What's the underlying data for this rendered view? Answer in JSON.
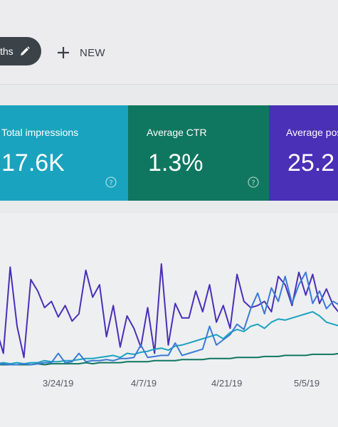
{
  "toolbar": {
    "chip_label": "ths",
    "new_label": "NEW"
  },
  "cards": [
    {
      "label": "Total impressions",
      "value": "17.6K",
      "color": "#1aa3bf"
    },
    {
      "label": "Average CTR",
      "value": "1.3%",
      "color": "#0f7760"
    },
    {
      "label": "Average pos",
      "value": "25.2",
      "color": "#4a2fb7"
    }
  ],
  "colors": {
    "impressions": "#1aa3bf",
    "ctr": "#0f7760",
    "position": "#4a2fb7",
    "clicks": "#3a7bd5"
  },
  "icons": {
    "edit": "pencil-icon",
    "add": "plus-icon",
    "help": "help-circle-icon"
  },
  "chart_data": {
    "type": "line",
    "x_tick_labels": [
      "3/24/19",
      "4/7/19",
      "4/21/19",
      "5/5/19"
    ],
    "grid": false,
    "series": [
      {
        "color": "#4a2fb7",
        "values": [
          0.35,
          0.12,
          0.95,
          0.38,
          0.08,
          0.83,
          0.72,
          0.56,
          0.62,
          0.47,
          0.58,
          0.43,
          0.5,
          0.92,
          0.66,
          0.78,
          0.28,
          0.58,
          0.18,
          0.48,
          0.36,
          0.18,
          0.56,
          0.12,
          0.98,
          0.2,
          0.6,
          0.46,
          0.46,
          0.72,
          0.52,
          0.78,
          0.42,
          0.58,
          0.36,
          0.88,
          0.62,
          0.56,
          0.58,
          0.62,
          0.52,
          0.86,
          0.78,
          0.58,
          0.9,
          0.68,
          0.88,
          0.6,
          0.74,
          0.58,
          0.5
        ]
      },
      {
        "color": "#1aa3bf",
        "values": [
          0.02,
          0.03,
          0.02,
          0.03,
          0.02,
          0.03,
          0.03,
          0.05,
          0.04,
          0.04,
          0.05,
          0.05,
          0.06,
          0.07,
          0.07,
          0.08,
          0.09,
          0.1,
          0.08,
          0.12,
          0.11,
          0.13,
          0.14,
          0.16,
          0.17,
          0.15,
          0.19,
          0.2,
          0.22,
          0.24,
          0.26,
          0.28,
          0.3,
          0.26,
          0.32,
          0.35,
          0.33,
          0.38,
          0.4,
          0.36,
          0.42,
          0.45,
          0.44,
          0.46,
          0.48,
          0.5,
          0.52,
          0.48,
          0.42,
          0.4,
          0.38
        ]
      },
      {
        "color": "#0f7760",
        "values": [
          0.01,
          0.01,
          0.01,
          0.01,
          0.01,
          0.01,
          0.02,
          0.01,
          0.02,
          0.02,
          0.02,
          0.02,
          0.02,
          0.03,
          0.02,
          0.03,
          0.03,
          0.03,
          0.03,
          0.04,
          0.04,
          0.04,
          0.04,
          0.05,
          0.05,
          0.05,
          0.05,
          0.06,
          0.06,
          0.06,
          0.06,
          0.07,
          0.07,
          0.07,
          0.07,
          0.08,
          0.08,
          0.08,
          0.08,
          0.09,
          0.09,
          0.09,
          0.1,
          0.1,
          0.1,
          0.1,
          0.11,
          0.11,
          0.11,
          0.11,
          0.12
        ]
      },
      {
        "color": "#3a7bd5",
        "values": [
          0.01,
          0.02,
          0.01,
          0.01,
          0.02,
          0.01,
          0.02,
          0.03,
          0.03,
          0.12,
          0.03,
          0.04,
          0.12,
          0.04,
          0.05,
          0.05,
          0.06,
          0.05,
          0.07,
          0.07,
          0.08,
          0.2,
          0.08,
          0.09,
          0.1,
          0.1,
          0.22,
          0.1,
          0.12,
          0.14,
          0.16,
          0.38,
          0.2,
          0.25,
          0.3,
          0.4,
          0.35,
          0.55,
          0.7,
          0.5,
          0.75,
          0.62,
          0.86,
          0.6,
          0.78,
          0.9,
          0.6,
          0.72,
          0.55,
          0.62,
          0.58
        ]
      }
    ]
  }
}
